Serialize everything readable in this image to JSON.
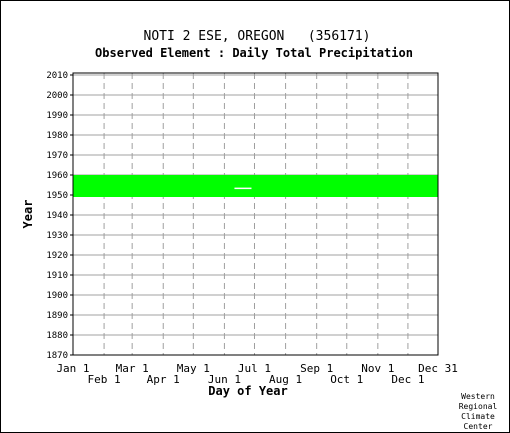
{
  "chart_data": {
    "type": "heatmap",
    "title": "NOTI 2 ESE, OREGON   (356171)",
    "subtitle": "Observed Element : Daily Total Precipitation",
    "xlabel": "Day of Year",
    "ylabel": "Year",
    "credit": [
      "Western",
      "Regional",
      "Climate",
      "Center"
    ],
    "xlim": [
      1,
      365
    ],
    "ylim": [
      1870,
      2011
    ],
    "x_ticks_upper": [
      {
        "label": "Jan 1",
        "day": 1
      },
      {
        "label": "Mar 1",
        "day": 60
      },
      {
        "label": "May 1",
        "day": 121
      },
      {
        "label": "Jul 1",
        "day": 182
      },
      {
        "label": "Sep 1",
        "day": 244
      },
      {
        "label": "Nov 1",
        "day": 305
      },
      {
        "label": "Dec 31",
        "day": 365
      }
    ],
    "x_ticks_lower": [
      {
        "label": "Feb 1",
        "day": 32
      },
      {
        "label": "Apr 1",
        "day": 91
      },
      {
        "label": "Jun 1",
        "day": 152
      },
      {
        "label": "Aug 1",
        "day": 213
      },
      {
        "label": "Oct 1",
        "day": 274
      },
      {
        "label": "Dec 1",
        "day": 335
      }
    ],
    "y_ticks": [
      2010,
      2000,
      1990,
      1980,
      1970,
      1960,
      1950,
      1940,
      1930,
      1920,
      1910,
      1900,
      1890,
      1880,
      1870
    ],
    "data_coverage": {
      "year_start": 1949,
      "year_end": 1959,
      "day_start": 1,
      "day_end": 365,
      "color": "#00ff00"
    },
    "missing_gaps": [
      {
        "year": 1953,
        "day_start": 162,
        "day_end": 179
      }
    ],
    "colors": {
      "data": "#00ff00",
      "missing": "#ffffff",
      "grid": "#a0a0a0",
      "axis": "#000000"
    }
  }
}
